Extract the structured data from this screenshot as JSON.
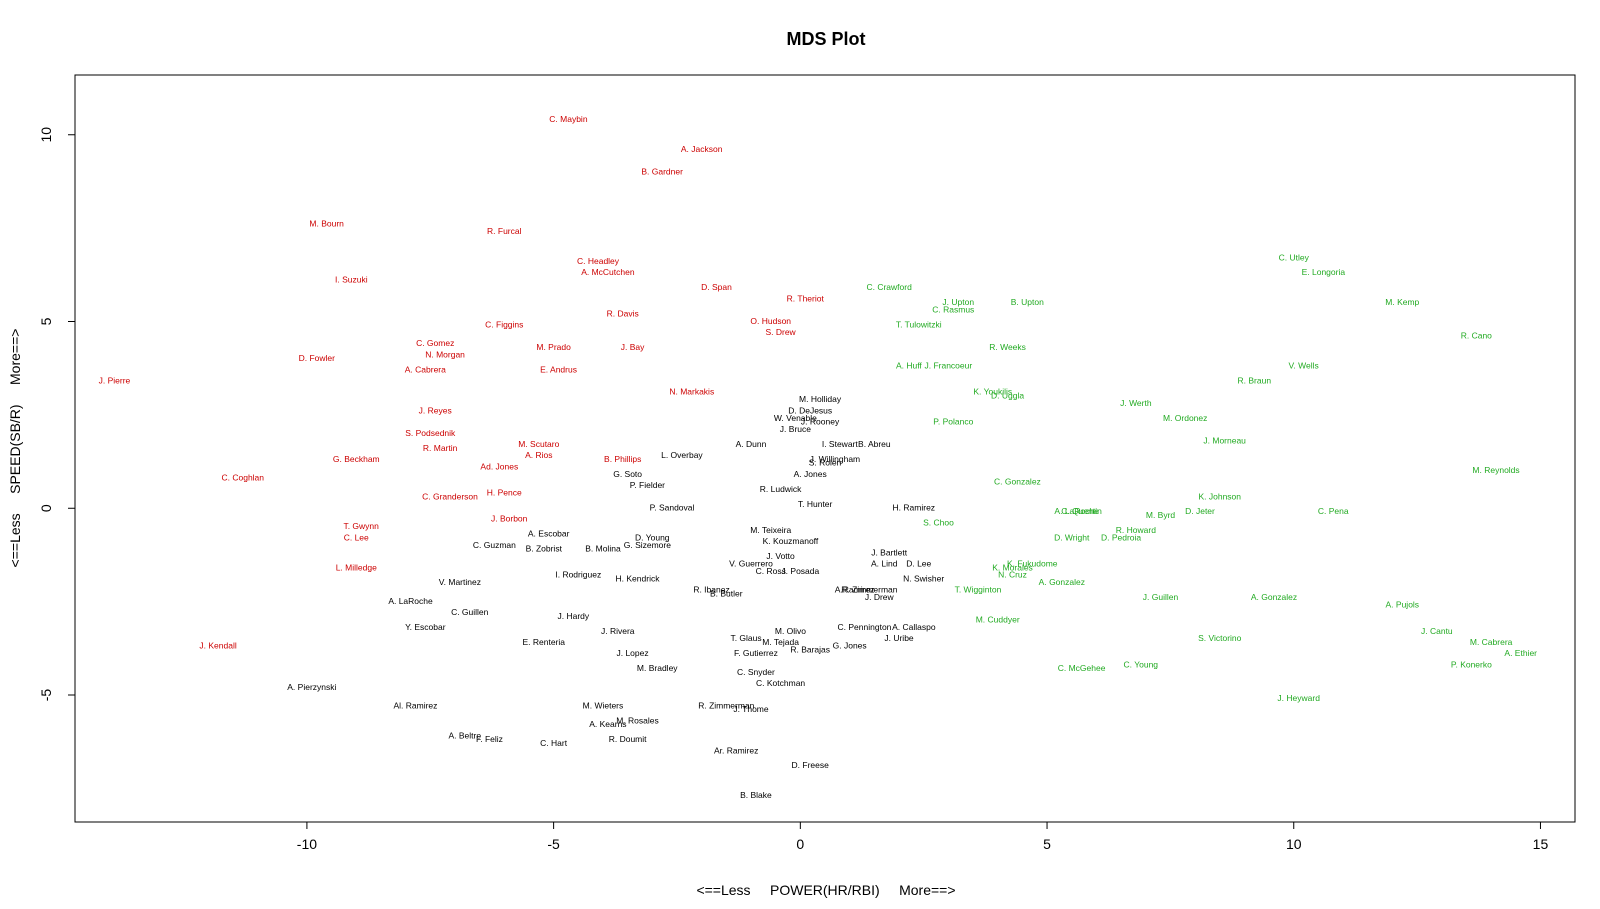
{
  "chart_data": {
    "type": "scatter",
    "title": "MDS Plot",
    "xlabel": "<==Less     POWER(HR/RBI)     More==>",
    "ylabel": "<==Less     SPEED(SB/R)     More==>",
    "xlim": [
      -14.7,
      15.7
    ],
    "ylim": [
      -8.4,
      11.6
    ],
    "xticks": [
      -10,
      -5,
      0,
      5,
      10,
      15
    ],
    "yticks": [
      -5,
      0,
      5,
      10
    ],
    "colors": {
      "red": "#cc0000",
      "black": "#000000",
      "green": "#22aa22"
    },
    "points": [
      {
        "label": "C. Maybin",
        "x": -4.7,
        "y": 10.4,
        "color": "red"
      },
      {
        "label": "A. Jackson",
        "x": -2.0,
        "y": 9.6,
        "color": "red"
      },
      {
        "label": "B. Gardner",
        "x": -2.8,
        "y": 9.0,
        "color": "red"
      },
      {
        "label": "M. Bourn",
        "x": -9.6,
        "y": 7.6,
        "color": "red"
      },
      {
        "label": "R. Furcal",
        "x": -6.0,
        "y": 7.4,
        "color": "red"
      },
      {
        "label": "C. Headley",
        "x": -4.1,
        "y": 6.6,
        "color": "red"
      },
      {
        "label": "A. McCutchen",
        "x": -3.9,
        "y": 6.3,
        "color": "red"
      },
      {
        "label": "I. Suzuki",
        "x": -9.1,
        "y": 6.1,
        "color": "red"
      },
      {
        "label": "D. Span",
        "x": -1.7,
        "y": 5.9,
        "color": "red"
      },
      {
        "label": "R. Theriot",
        "x": 0.1,
        "y": 5.6,
        "color": "red"
      },
      {
        "label": "R. Davis",
        "x": -3.6,
        "y": 5.2,
        "color": "red"
      },
      {
        "label": "O. Hudson",
        "x": -0.6,
        "y": 5.0,
        "color": "red"
      },
      {
        "label": "C. Figgins",
        "x": -6.0,
        "y": 4.9,
        "color": "red"
      },
      {
        "label": "S. Drew",
        "x": -0.4,
        "y": 4.7,
        "color": "red"
      },
      {
        "label": "C. Gomez",
        "x": -7.4,
        "y": 4.4,
        "color": "red"
      },
      {
        "label": "M. Prado",
        "x": -5.0,
        "y": 4.3,
        "color": "red"
      },
      {
        "label": "J. Bay",
        "x": -3.4,
        "y": 4.3,
        "color": "red"
      },
      {
        "label": "N. Morgan",
        "x": -7.2,
        "y": 4.1,
        "color": "red"
      },
      {
        "label": "D. Fowler",
        "x": -9.8,
        "y": 4.0,
        "color": "red"
      },
      {
        "label": "A. Cabrera",
        "x": -7.6,
        "y": 3.7,
        "color": "red"
      },
      {
        "label": "E. Andrus",
        "x": -4.9,
        "y": 3.7,
        "color": "red"
      },
      {
        "label": "J. Pierre",
        "x": -13.9,
        "y": 3.4,
        "color": "red"
      },
      {
        "label": "N. Markakis",
        "x": -2.2,
        "y": 3.1,
        "color": "red"
      },
      {
        "label": "J. Reyes",
        "x": -7.4,
        "y": 2.6,
        "color": "red"
      },
      {
        "label": "S. Podsednik",
        "x": -7.5,
        "y": 2.0,
        "color": "red"
      },
      {
        "label": "M. Scutaro",
        "x": -5.3,
        "y": 1.7,
        "color": "red"
      },
      {
        "label": "R. Martin",
        "x": -7.3,
        "y": 1.6,
        "color": "red"
      },
      {
        "label": "A. Rios",
        "x": -5.3,
        "y": 1.4,
        "color": "red"
      },
      {
        "label": "B. Phillips",
        "x": -3.6,
        "y": 1.3,
        "color": "red"
      },
      {
        "label": "G. Beckham",
        "x": -9.0,
        "y": 1.3,
        "color": "red"
      },
      {
        "label": "Ad. Jones",
        "x": -6.1,
        "y": 1.1,
        "color": "red"
      },
      {
        "label": "C. Coghlan",
        "x": -11.3,
        "y": 0.8,
        "color": "red"
      },
      {
        "label": "C. Granderson",
        "x": -7.1,
        "y": 0.3,
        "color": "red"
      },
      {
        "label": "H. Pence",
        "x": -6.0,
        "y": 0.4,
        "color": "red"
      },
      {
        "label": "J. Borbon",
        "x": -5.9,
        "y": -0.3,
        "color": "red"
      },
      {
        "label": "T. Gwynn",
        "x": -8.9,
        "y": -0.5,
        "color": "red"
      },
      {
        "label": "C. Lee",
        "x": -9.0,
        "y": -0.8,
        "color": "red"
      },
      {
        "label": "L. Milledge",
        "x": -9.0,
        "y": -1.6,
        "color": "red"
      },
      {
        "label": "J. Kendall",
        "x": -11.8,
        "y": -3.7,
        "color": "red"
      },
      {
        "label": "M. Holliday",
        "x": 0.4,
        "y": 2.9,
        "color": "black"
      },
      {
        "label": "D. DeJesus",
        "x": 0.2,
        "y": 2.6,
        "color": "black"
      },
      {
        "label": "W. Venable",
        "x": -0.1,
        "y": 2.4,
        "color": "black"
      },
      {
        "label": "J. Rooney",
        "x": 0.4,
        "y": 2.3,
        "color": "black"
      },
      {
        "label": "J. Bruce",
        "x": -0.1,
        "y": 2.1,
        "color": "black"
      },
      {
        "label": "A. Dunn",
        "x": -1.0,
        "y": 1.7,
        "color": "black"
      },
      {
        "label": "I. Stewart",
        "x": 0.8,
        "y": 1.7,
        "color": "black"
      },
      {
        "label": "B. Abreu",
        "x": 1.5,
        "y": 1.7,
        "color": "black"
      },
      {
        "label": "L. Overbay",
        "x": -2.4,
        "y": 1.4,
        "color": "black"
      },
      {
        "label": "J. Willingham",
        "x": 0.7,
        "y": 1.3,
        "color": "black"
      },
      {
        "label": "S. Rolen",
        "x": 0.5,
        "y": 1.2,
        "color": "black"
      },
      {
        "label": "A. Jones",
        "x": 0.2,
        "y": 0.9,
        "color": "black"
      },
      {
        "label": "G. Soto",
        "x": -3.5,
        "y": 0.9,
        "color": "black"
      },
      {
        "label": "P. Fielder",
        "x": -3.1,
        "y": 0.6,
        "color": "black"
      },
      {
        "label": "R. Ludwick",
        "x": -0.4,
        "y": 0.5,
        "color": "black"
      },
      {
        "label": "T. Hunter",
        "x": 0.3,
        "y": 0.1,
        "color": "black"
      },
      {
        "label": "P. Sandoval",
        "x": -2.6,
        "y": 0.0,
        "color": "black"
      },
      {
        "label": "H. Ramirez",
        "x": 2.3,
        "y": 0.0,
        "color": "black"
      },
      {
        "label": "A. Escobar",
        "x": -5.1,
        "y": -0.7,
        "color": "black"
      },
      {
        "label": "M. Teixeira",
        "x": -0.6,
        "y": -0.6,
        "color": "black"
      },
      {
        "label": "D. Young",
        "x": -3.0,
        "y": -0.8,
        "color": "black"
      },
      {
        "label": "G. Sizemore",
        "x": -3.1,
        "y": -1.0,
        "color": "black"
      },
      {
        "label": "K. Kouzmanoff",
        "x": -0.2,
        "y": -0.9,
        "color": "black"
      },
      {
        "label": "C. Guzman",
        "x": -6.2,
        "y": -1.0,
        "color": "black"
      },
      {
        "label": "B. Zobrist",
        "x": -5.2,
        "y": -1.1,
        "color": "black"
      },
      {
        "label": "B. Molina",
        "x": -4.0,
        "y": -1.1,
        "color": "black"
      },
      {
        "label": "J. Bartlett",
        "x": 1.8,
        "y": -1.2,
        "color": "black"
      },
      {
        "label": "J. Votto",
        "x": -0.4,
        "y": -1.3,
        "color": "black"
      },
      {
        "label": "A. Lind",
        "x": 1.7,
        "y": -1.5,
        "color": "black"
      },
      {
        "label": "D. Lee",
        "x": 2.4,
        "y": -1.5,
        "color": "black"
      },
      {
        "label": "V. Guerrero",
        "x": -1.0,
        "y": -1.5,
        "color": "black"
      },
      {
        "label": "J. Posada",
        "x": 0.0,
        "y": -1.7,
        "color": "black"
      },
      {
        "label": "C. Ross",
        "x": -0.6,
        "y": -1.7,
        "color": "black"
      },
      {
        "label": "I. Rodriguez",
        "x": -4.5,
        "y": -1.8,
        "color": "black"
      },
      {
        "label": "H. Kendrick",
        "x": -3.3,
        "y": -1.9,
        "color": "black"
      },
      {
        "label": "N. Swisher",
        "x": 2.5,
        "y": -1.9,
        "color": "black"
      },
      {
        "label": "V. Martinez",
        "x": -6.9,
        "y": -2.0,
        "color": "black"
      },
      {
        "label": "R. Ibanez",
        "x": -1.8,
        "y": -2.2,
        "color": "black"
      },
      {
        "label": "B. Butler",
        "x": -1.5,
        "y": -2.3,
        "color": "black"
      },
      {
        "label": "A.Ramirez",
        "x": 1.1,
        "y": -2.2,
        "color": "black"
      },
      {
        "label": "R. Zimmerman",
        "x": 1.4,
        "y": -2.2,
        "color": "black"
      },
      {
        "label": "J. Drew",
        "x": 1.6,
        "y": -2.4,
        "color": "black"
      },
      {
        "label": "A. LaRoche",
        "x": -7.9,
        "y": -2.5,
        "color": "black"
      },
      {
        "label": "C. Guillen",
        "x": -6.7,
        "y": -2.8,
        "color": "black"
      },
      {
        "label": "J. Hardy",
        "x": -4.6,
        "y": -2.9,
        "color": "black"
      },
      {
        "label": "Y. Escobar",
        "x": -7.6,
        "y": -3.2,
        "color": "black"
      },
      {
        "label": "J. Rivera",
        "x": -3.7,
        "y": -3.3,
        "color": "black"
      },
      {
        "label": "C. Pennington",
        "x": 1.3,
        "y": -3.2,
        "color": "black"
      },
      {
        "label": "A. Callaspo",
        "x": 2.3,
        "y": -3.2,
        "color": "black"
      },
      {
        "label": "M. Olivo",
        "x": -0.2,
        "y": -3.3,
        "color": "black"
      },
      {
        "label": "T. Glaus",
        "x": -1.1,
        "y": -3.5,
        "color": "black"
      },
      {
        "label": "J. Uribe",
        "x": 2.0,
        "y": -3.5,
        "color": "black"
      },
      {
        "label": "E. Renteria",
        "x": -5.2,
        "y": -3.6,
        "color": "black"
      },
      {
        "label": "M. Tejada",
        "x": -0.4,
        "y": -3.6,
        "color": "black"
      },
      {
        "label": "G. Jones",
        "x": 1.0,
        "y": -3.7,
        "color": "black"
      },
      {
        "label": "R. Barajas",
        "x": 0.2,
        "y": -3.8,
        "color": "black"
      },
      {
        "label": "J. Lopez",
        "x": -3.4,
        "y": -3.9,
        "color": "black"
      },
      {
        "label": "F. Gutierrez",
        "x": -0.9,
        "y": -3.9,
        "color": "black"
      },
      {
        "label": "M. Bradley",
        "x": -2.9,
        "y": -4.3,
        "color": "black"
      },
      {
        "label": "C. Snyder",
        "x": -0.9,
        "y": -4.4,
        "color": "black"
      },
      {
        "label": "C. Kotchman",
        "x": -0.4,
        "y": -4.7,
        "color": "black"
      },
      {
        "label": "A. Pierzynski",
        "x": -9.9,
        "y": -4.8,
        "color": "black"
      },
      {
        "label": "M. Wieters",
        "x": -4.0,
        "y": -5.3,
        "color": "black"
      },
      {
        "label": "R. Zimmerman",
        "x": -1.5,
        "y": -5.3,
        "color": "black"
      },
      {
        "label": "J. Thome",
        "x": -1.0,
        "y": -5.4,
        "color": "black"
      },
      {
        "label": "Al. Ramirez",
        "x": -7.8,
        "y": -5.3,
        "color": "black"
      },
      {
        "label": "M. Rosales",
        "x": -3.3,
        "y": -5.7,
        "color": "black"
      },
      {
        "label": "A. Kearns",
        "x": -3.9,
        "y": -5.8,
        "color": "black"
      },
      {
        "label": "A. Beltre",
        "x": -6.8,
        "y": -6.1,
        "color": "black"
      },
      {
        "label": "F. Feliz",
        "x": -6.3,
        "y": -6.2,
        "color": "black"
      },
      {
        "label": "R. Doumit",
        "x": -3.5,
        "y": -6.2,
        "color": "black"
      },
      {
        "label": "C. Hart",
        "x": -5.0,
        "y": -6.3,
        "color": "black"
      },
      {
        "label": "Ar. Ramirez",
        "x": -1.3,
        "y": -6.5,
        "color": "black"
      },
      {
        "label": "D. Freese",
        "x": 0.2,
        "y": -6.9,
        "color": "black"
      },
      {
        "label": "B. Blake",
        "x": -0.9,
        "y": -7.7,
        "color": "black"
      },
      {
        "label": "C. Utley",
        "x": 10.0,
        "y": 6.7,
        "color": "green"
      },
      {
        "label": "E. Longoria",
        "x": 10.6,
        "y": 6.3,
        "color": "green"
      },
      {
        "label": "C. Crawford",
        "x": 1.8,
        "y": 5.9,
        "color": "green"
      },
      {
        "label": "M. Kemp",
        "x": 12.2,
        "y": 5.5,
        "color": "green"
      },
      {
        "label": "B. Upton",
        "x": 4.6,
        "y": 5.5,
        "color": "green"
      },
      {
        "label": "J. Upton",
        "x": 3.2,
        "y": 5.5,
        "color": "green"
      },
      {
        "label": "C. Rasmus",
        "x": 3.1,
        "y": 5.3,
        "color": "green"
      },
      {
        "label": "T. Tulowitzki",
        "x": 2.4,
        "y": 4.9,
        "color": "green"
      },
      {
        "label": "R. Cano",
        "x": 13.7,
        "y": 4.6,
        "color": "green"
      },
      {
        "label": "R. Weeks",
        "x": 4.2,
        "y": 4.3,
        "color": "green"
      },
      {
        "label": "A. Huff",
        "x": 2.2,
        "y": 3.8,
        "color": "green"
      },
      {
        "label": "J. Francoeur",
        "x": 3.0,
        "y": 3.8,
        "color": "green"
      },
      {
        "label": "V. Wells",
        "x": 10.2,
        "y": 3.8,
        "color": "green"
      },
      {
        "label": "R. Braun",
        "x": 9.2,
        "y": 3.4,
        "color": "green"
      },
      {
        "label": "K. Youkilis",
        "x": 3.9,
        "y": 3.1,
        "color": "green"
      },
      {
        "label": "D. Uggla",
        "x": 4.2,
        "y": 3.0,
        "color": "green"
      },
      {
        "label": "J. Werth",
        "x": 6.8,
        "y": 2.8,
        "color": "green"
      },
      {
        "label": "M. Ordonez",
        "x": 7.8,
        "y": 2.4,
        "color": "green"
      },
      {
        "label": "P. Polanco",
        "x": 3.1,
        "y": 2.3,
        "color": "green"
      },
      {
        "label": "J. Morneau",
        "x": 8.6,
        "y": 1.8,
        "color": "green"
      },
      {
        "label": "M. Reynolds",
        "x": 14.1,
        "y": 1.0,
        "color": "green"
      },
      {
        "label": "C. Gonzalez",
        "x": 4.4,
        "y": 0.7,
        "color": "green"
      },
      {
        "label": "K. Johnson",
        "x": 8.5,
        "y": 0.3,
        "color": "green"
      },
      {
        "label": "C. Pena",
        "x": 10.8,
        "y": -0.1,
        "color": "green"
      },
      {
        "label": "A. LaRoche",
        "x": 5.6,
        "y": -0.1,
        "color": "green"
      },
      {
        "label": "C. Quentin",
        "x": 5.7,
        "y": -0.1,
        "color": "green"
      },
      {
        "label": "D. Jeter",
        "x": 8.1,
        "y": -0.1,
        "color": "green"
      },
      {
        "label": "M. Byrd",
        "x": 7.3,
        "y": -0.2,
        "color": "green"
      },
      {
        "label": "S. Choo",
        "x": 2.8,
        "y": -0.4,
        "color": "green"
      },
      {
        "label": "R. Howard",
        "x": 6.8,
        "y": -0.6,
        "color": "green"
      },
      {
        "label": "D. Wright",
        "x": 5.5,
        "y": -0.8,
        "color": "green"
      },
      {
        "label": "D. Pedroia",
        "x": 6.5,
        "y": -0.8,
        "color": "green"
      },
      {
        "label": "K. Fukudome",
        "x": 4.7,
        "y": -1.5,
        "color": "green"
      },
      {
        "label": "K. Morales",
        "x": 4.3,
        "y": -1.6,
        "color": "green"
      },
      {
        "label": "N. Cruz",
        "x": 4.3,
        "y": -1.8,
        "color": "green"
      },
      {
        "label": "A. Gonzalez",
        "x": 5.3,
        "y": -2.0,
        "color": "green"
      },
      {
        "label": "T. Wigginton",
        "x": 3.6,
        "y": -2.2,
        "color": "green"
      },
      {
        "label": "J. Guillen",
        "x": 7.3,
        "y": -2.4,
        "color": "green"
      },
      {
        "label": "A. Gonzalez",
        "x": 9.6,
        "y": -2.4,
        "color": "green"
      },
      {
        "label": "A. Pujols",
        "x": 12.2,
        "y": -2.6,
        "color": "green"
      },
      {
        "label": "M. Cuddyer",
        "x": 4.0,
        "y": -3.0,
        "color": "green"
      },
      {
        "label": "J. Cantu",
        "x": 12.9,
        "y": -3.3,
        "color": "green"
      },
      {
        "label": "S. Victorino",
        "x": 8.5,
        "y": -3.5,
        "color": "green"
      },
      {
        "label": "M. Cabrera",
        "x": 14.0,
        "y": -3.6,
        "color": "green"
      },
      {
        "label": "A. Ethier",
        "x": 14.6,
        "y": -3.9,
        "color": "green"
      },
      {
        "label": "P. Konerko",
        "x": 13.6,
        "y": -4.2,
        "color": "green"
      },
      {
        "label": "C. Young",
        "x": 6.9,
        "y": -4.2,
        "color": "green"
      },
      {
        "label": "C. McGehee",
        "x": 5.7,
        "y": -4.3,
        "color": "green"
      },
      {
        "label": "J. Heyward",
        "x": 10.1,
        "y": -5.1,
        "color": "green"
      }
    ]
  }
}
